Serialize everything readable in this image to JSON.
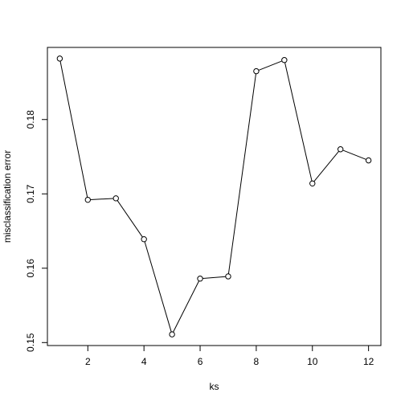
{
  "chart_data": {
    "type": "line",
    "title": "",
    "xlabel": "ks",
    "ylabel": "misclassification error",
    "x": [
      1,
      2,
      3,
      4,
      5,
      6,
      7,
      8,
      9,
      10,
      11,
      12
    ],
    "series": [
      {
        "values": [
          0.1882,
          0.1692,
          0.1694,
          0.1639,
          0.1511,
          0.1586,
          0.1589,
          0.1865,
          0.188,
          0.1714,
          0.176,
          0.1745
        ]
      }
    ],
    "xlim": [
      0.56,
      12.44
    ],
    "ylim": [
      0.1496,
      0.1897
    ],
    "xticks": [
      2,
      4,
      6,
      8,
      10,
      12
    ],
    "xtick_labels": [
      "2",
      "4",
      "6",
      "8",
      "10",
      "12"
    ],
    "yticks": [
      0.15,
      0.16,
      0.17,
      0.18
    ],
    "ytick_labels": [
      "0.15",
      "0.16",
      "0.17",
      "0.18"
    ],
    "grid": false,
    "legend": "none",
    "markers": "open-circle"
  }
}
